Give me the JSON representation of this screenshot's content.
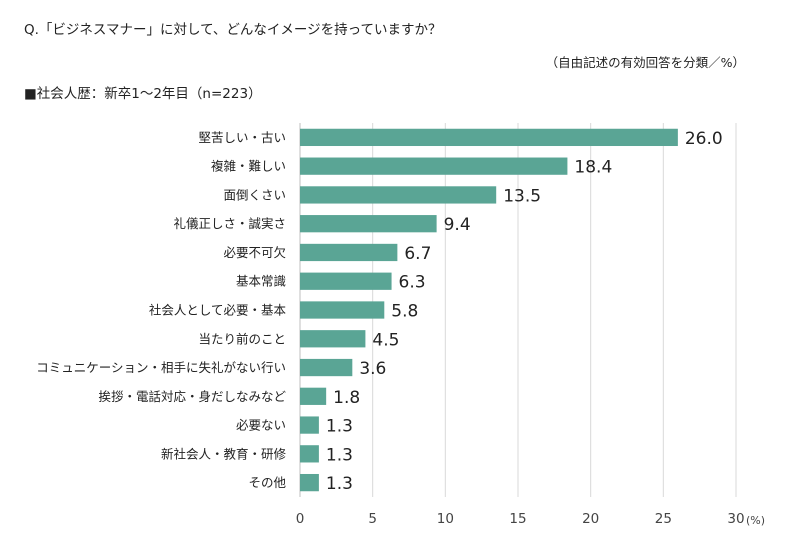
{
  "header": {
    "question": "Q.「ビジネスマナー」に対して、どんなイメージを持っていますか？",
    "note": "（自由記述の有効回答を分類／%）",
    "subtitle": "■社会人歴：新卒1～2年目（n=223）"
  },
  "chart_data": {
    "type": "bar",
    "orientation": "horizontal",
    "categories": [
      "堅苦しい・古い",
      "複雑・難しい",
      "面倒くさい",
      "礼儀正しさ・誠実さ",
      "必要不可欠",
      "基本常識",
      "社会人として必要・基本",
      "当たり前のこと",
      "コミュニケーション・相手に失礼がない行い",
      "挨拶・電話対応・身だしなみなど",
      "必要ない",
      "新社会人・教育・研修",
      "その他"
    ],
    "values": [
      26.0,
      18.4,
      13.5,
      9.4,
      6.7,
      6.3,
      5.8,
      4.5,
      3.6,
      1.8,
      1.3,
      1.3,
      1.3
    ],
    "value_labels": [
      "26.0",
      "18.4",
      "13.5",
      "9.4",
      "6.7",
      "6.3",
      "5.8",
      "4.5",
      "3.6",
      "1.8",
      "1.3",
      "1.3",
      "1.3"
    ],
    "xlim": [
      0,
      30
    ],
    "xticks": [
      0,
      5,
      10,
      15,
      20,
      25,
      30
    ],
    "xunit": "(%)",
    "bar_color": "#5aa595",
    "grid_color": "#d9d9d9"
  }
}
